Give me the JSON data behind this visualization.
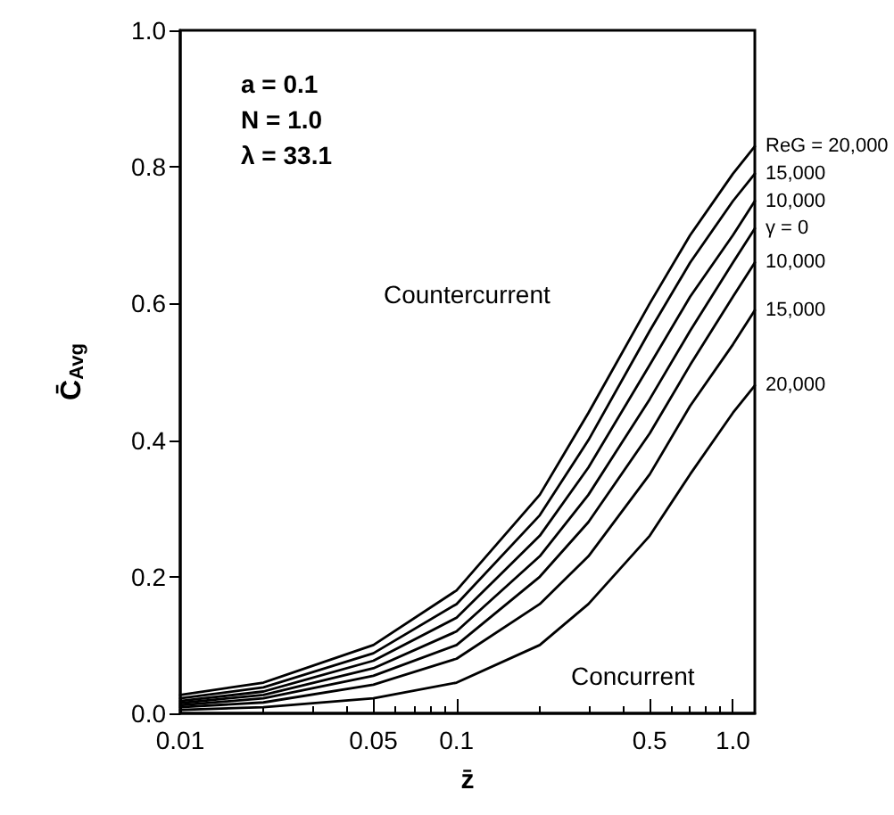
{
  "chart_data": {
    "type": "line",
    "xlabel": "z̄",
    "ylabel": "C̄$_{Avg}$",
    "x": [
      0.01,
      0.02,
      0.05,
      0.1,
      0.2,
      0.3,
      0.5,
      0.7,
      1.0,
      1.2
    ],
    "series": [
      {
        "name": "ReG = 20,000",
        "color": "#000000",
        "values": [
          0.027,
          0.045,
          0.1,
          0.18,
          0.32,
          0.44,
          0.6,
          0.7,
          0.79,
          0.83
        ]
      },
      {
        "name": "15,000",
        "color": "#000000",
        "values": [
          0.022,
          0.038,
          0.088,
          0.16,
          0.29,
          0.4,
          0.56,
          0.66,
          0.75,
          0.79
        ]
      },
      {
        "name": "10,000",
        "color": "#000000",
        "values": [
          0.018,
          0.032,
          0.077,
          0.14,
          0.26,
          0.36,
          0.51,
          0.61,
          0.7,
          0.75
        ]
      },
      {
        "name": "γ = 0",
        "color": "#000000",
        "values": [
          0.015,
          0.027,
          0.066,
          0.12,
          0.23,
          0.32,
          0.46,
          0.56,
          0.66,
          0.71
        ]
      },
      {
        "name": "10,000",
        "color": "#000000",
        "values": [
          0.012,
          0.022,
          0.055,
          0.1,
          0.2,
          0.28,
          0.41,
          0.51,
          0.61,
          0.66
        ]
      },
      {
        "name": "15,000",
        "color": "#000000",
        "values": [
          0.009,
          0.016,
          0.042,
          0.08,
          0.16,
          0.23,
          0.35,
          0.45,
          0.54,
          0.59
        ]
      },
      {
        "name": "20,000",
        "color": "#000000",
        "values": [
          0.005,
          0.009,
          0.022,
          0.045,
          0.1,
          0.16,
          0.26,
          0.35,
          0.44,
          0.48
        ]
      }
    ],
    "annotations": [
      "a = 0.1",
      "N = 1.0",
      "λ = 33.1",
      "Countercurrent",
      "Concurrent"
    ],
    "log": "x",
    "xlim": [
      0.01,
      1.2
    ],
    "xticks": [
      0.01,
      0.05,
      0.1,
      0.5,
      {
        "value": 1.0,
        "label": "1.0"
      }
    ],
    "ylim": [
      0,
      1.0
    ],
    "yticks": [
      {
        "value": 0,
        "label": "0.0"
      },
      0.2,
      0.4,
      0.6,
      0.8,
      {
        "value": 1.0,
        "label": "1.0"
      }
    ],
    "grid": false,
    "legend": false,
    "marker": "none",
    "line_style": "solid"
  }
}
